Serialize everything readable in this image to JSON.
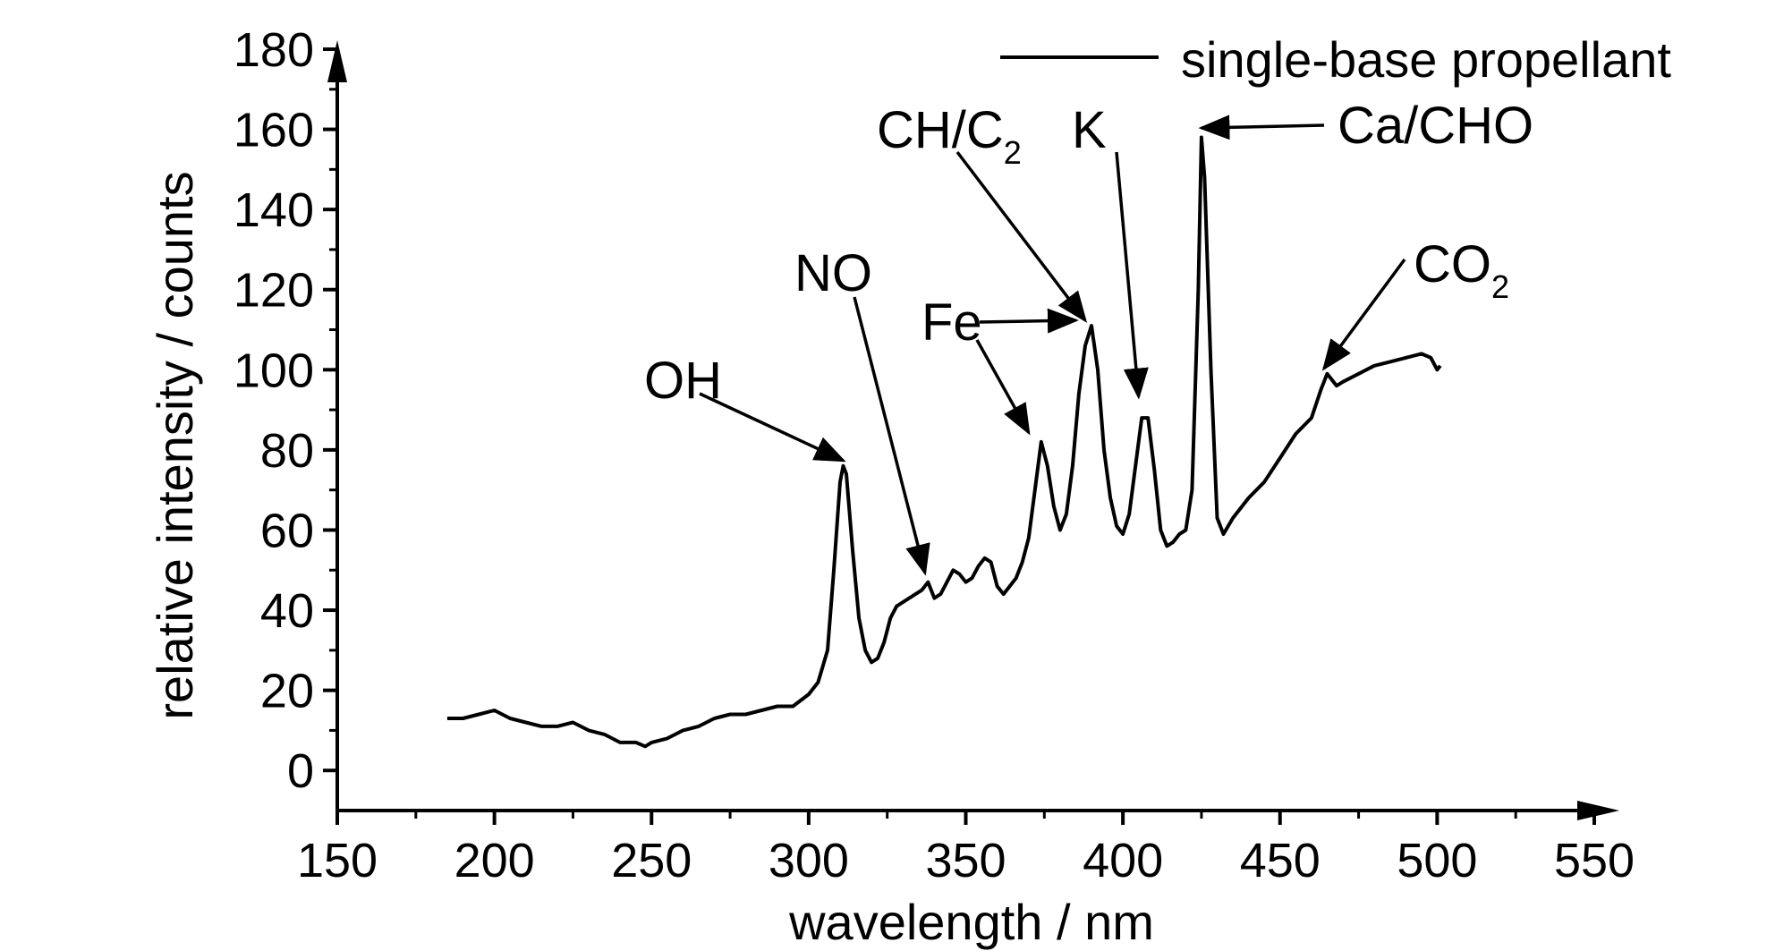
{
  "chart_data": {
    "type": "line",
    "xlabel": "wavelength / nm",
    "ylabel": "relative intensity / counts",
    "xlim": [
      150,
      550
    ],
    "ylim": [
      -10,
      180
    ],
    "xticks": [
      150,
      200,
      250,
      300,
      350,
      400,
      450,
      500,
      550
    ],
    "yticks": [
      0,
      20,
      40,
      60,
      80,
      100,
      120,
      140,
      160,
      180
    ],
    "grid": false,
    "legend_position": "top-right",
    "series": [
      {
        "name": "single-base propellant",
        "color": "#000000",
        "x": [
          185,
          190,
          195,
          200,
          205,
          210,
          215,
          220,
          225,
          230,
          235,
          240,
          245,
          248,
          250,
          255,
          260,
          265,
          270,
          275,
          280,
          285,
          290,
          295,
          300,
          303,
          306,
          308,
          310,
          311,
          312,
          314,
          316,
          318,
          320,
          322,
          324,
          326,
          328,
          330,
          332,
          334,
          336,
          338,
          340,
          342,
          344,
          346,
          348,
          350,
          352,
          354,
          356,
          358,
          360,
          362,
          364,
          366,
          368,
          370,
          372,
          374,
          376,
          378,
          380,
          382,
          384,
          386,
          388,
          390,
          392,
          394,
          396,
          398,
          400,
          402,
          404,
          406,
          408,
          410,
          412,
          414,
          416,
          418,
          420,
          422,
          424,
          425,
          426,
          428,
          430,
          432,
          435,
          440,
          445,
          450,
          455,
          460,
          463,
          465,
          468,
          470,
          475,
          480,
          485,
          490,
          495,
          498,
          500,
          501
        ],
        "y": [
          13,
          13,
          14,
          15,
          13,
          12,
          11,
          11,
          12,
          10,
          9,
          7,
          7,
          6,
          7,
          8,
          10,
          11,
          13,
          14,
          14,
          15,
          16,
          16,
          19,
          22,
          30,
          50,
          72,
          76,
          74,
          55,
          38,
          30,
          27,
          28,
          32,
          38,
          41,
          42,
          43,
          44,
          45,
          47,
          43,
          44,
          47,
          50,
          49,
          47,
          48,
          51,
          53,
          52,
          46,
          44,
          46,
          48,
          52,
          58,
          70,
          82,
          76,
          66,
          60,
          64,
          76,
          94,
          106,
          111,
          100,
          80,
          68,
          61,
          59,
          64,
          76,
          88,
          88,
          75,
          60,
          56,
          57,
          59,
          60,
          70,
          120,
          158,
          148,
          100,
          63,
          59,
          63,
          68,
          72,
          78,
          84,
          88,
          95,
          99,
          96,
          97,
          99,
          101,
          102,
          103,
          104,
          103,
          100,
          101
        ]
      }
    ],
    "annotations": [
      {
        "label": "OH",
        "sub": "",
        "x": 311,
        "y": 76
      },
      {
        "label": "NO",
        "sub": "",
        "x": 337,
        "y": 48
      },
      {
        "label": "Fe",
        "sub": "",
        "x": 370,
        "y": 83
      },
      {
        "label": "Fe",
        "sub": "",
        "x": 385,
        "y": 111
      },
      {
        "label": "CH/C",
        "sub": "2",
        "x": 388,
        "y": 111
      },
      {
        "label": "K",
        "sub": "",
        "x": 405,
        "y": 92
      },
      {
        "label": "Ca/CHO",
        "sub": "",
        "x": 425,
        "y": 159
      },
      {
        "label": "CO",
        "sub": "2",
        "x": 464,
        "y": 99
      }
    ]
  }
}
